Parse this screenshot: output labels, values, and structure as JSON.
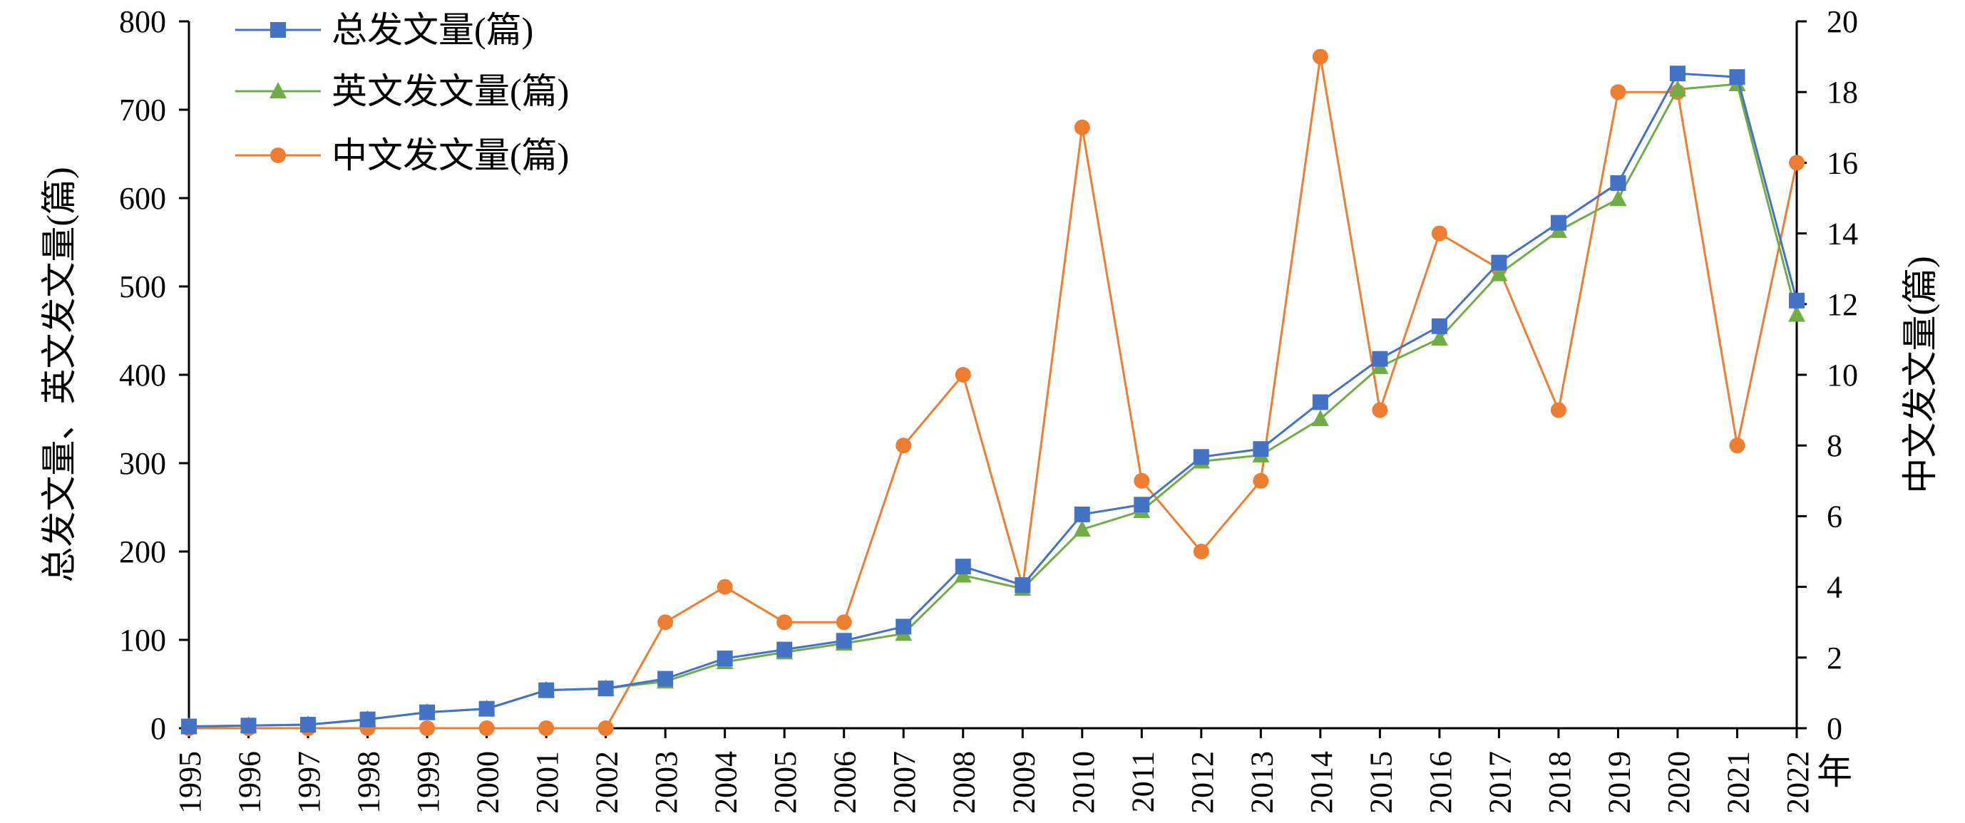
{
  "chart_data": {
    "type": "line",
    "x": [
      "1995",
      "1996",
      "1997",
      "1998",
      "1999",
      "2000",
      "2001",
      "2002",
      "2003",
      "2004",
      "2005",
      "2006",
      "2007",
      "2008",
      "2009",
      "2010",
      "2011",
      "2012",
      "2013",
      "2014",
      "2015",
      "2016",
      "2017",
      "2018",
      "2019",
      "2020",
      "2021",
      "2022"
    ],
    "x_unit": "年",
    "series": [
      {
        "name": "总发文量(篇)",
        "axis": "left",
        "color": "#4472C4",
        "marker": "square",
        "values": [
          2,
          3,
          4,
          10,
          18,
          22,
          43,
          45,
          56,
          79,
          89,
          99,
          115,
          183,
          162,
          242,
          253,
          307,
          316,
          369,
          418,
          455,
          527,
          572,
          617,
          741,
          737,
          484
        ]
      },
      {
        "name": "英文发文量(篇)",
        "axis": "left",
        "color": "#70AD47",
        "marker": "triangle",
        "values": [
          2,
          3,
          4,
          10,
          18,
          22,
          43,
          45,
          53,
          75,
          86,
          96,
          107,
          173,
          158,
          225,
          246,
          302,
          309,
          350,
          409,
          441,
          514,
          563,
          599,
          723,
          729,
          468
        ]
      },
      {
        "name": "中文发文量(篇)",
        "axis": "right",
        "color": "#ED7D31",
        "marker": "circle",
        "values": [
          0,
          0,
          0,
          0,
          0,
          0,
          0,
          0,
          3,
          4,
          3,
          3,
          8,
          10,
          4,
          17,
          7,
          5,
          7,
          19,
          9,
          14,
          13,
          9,
          18,
          18,
          8,
          16
        ]
      }
    ],
    "ylabel_left": "总发文量、英文发文量(篇)",
    "ylabel_right": "中文发文量(篇)",
    "ylim_left": [
      0,
      800
    ],
    "ylim_right": [
      0,
      20
    ],
    "yticks_left": [
      "0",
      "100",
      "200",
      "300",
      "400",
      "500",
      "600",
      "700",
      "800"
    ],
    "yticks_right": [
      "0",
      "2",
      "4",
      "6",
      "8",
      "10",
      "12",
      "14",
      "16",
      "18",
      "20"
    ],
    "legend_position": "top-left",
    "grid": false
  }
}
